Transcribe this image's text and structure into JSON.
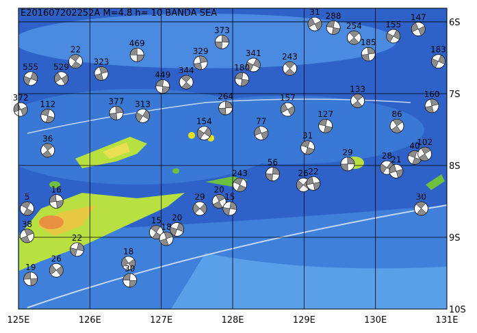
{
  "chart_data": {
    "type": "focal-map",
    "title": "E201607202252A  M=4.8  h= 10  BANDA SEA",
    "xlim": [
      125,
      131
    ],
    "ylim": [
      -10,
      -5.81
    ],
    "xticks": [
      {
        "value": 125,
        "label": "125E"
      },
      {
        "value": 126,
        "label": "126E"
      },
      {
        "value": 127,
        "label": "127E"
      },
      {
        "value": 128,
        "label": "128E"
      },
      {
        "value": 129,
        "label": "129E"
      },
      {
        "value": 130,
        "label": "130E"
      },
      {
        "value": 131,
        "label": "131E"
      }
    ],
    "yticks": [
      {
        "value": -6,
        "label": "6S"
      },
      {
        "value": -7,
        "label": "7S"
      },
      {
        "value": -8,
        "label": "8S"
      },
      {
        "value": -9,
        "label": "9S"
      },
      {
        "value": -10,
        "label": "10S"
      }
    ],
    "grid": true,
    "events": [
      {
        "lon": 126.66,
        "lat": -6.46,
        "depth": 469
      },
      {
        "lon": 125.8,
        "lat": -6.55,
        "depth": 22
      },
      {
        "lon": 126.16,
        "lat": -6.72,
        "depth": 323
      },
      {
        "lon": 125.17,
        "lat": -6.79,
        "depth": 555
      },
      {
        "lon": 125.6,
        "lat": -6.79,
        "depth": 529
      },
      {
        "lon": 127.02,
        "lat": -6.9,
        "depth": 449
      },
      {
        "lon": 127.35,
        "lat": -6.84,
        "depth": 344
      },
      {
        "lon": 127.55,
        "lat": -6.57,
        "depth": 329
      },
      {
        "lon": 128.29,
        "lat": -6.6,
        "depth": 341
      },
      {
        "lon": 129.15,
        "lat": -6.03,
        "depth": 31
      },
      {
        "lon": 129.41,
        "lat": -6.08,
        "depth": 288
      },
      {
        "lon": 129.7,
        "lat": -6.22,
        "depth": 254
      },
      {
        "lon": 126.37,
        "lat": -7.27,
        "depth": 377
      },
      {
        "lon": 126.74,
        "lat": -7.31,
        "depth": 313
      },
      {
        "lon": 125.03,
        "lat": -7.22,
        "depth": 372
      },
      {
        "lon": 125.41,
        "lat": -7.31,
        "depth": 112
      },
      {
        "lon": 125.41,
        "lat": -7.79,
        "depth": 36
      },
      {
        "lon": 129.61,
        "lat": -7.98,
        "depth": 29
      },
      {
        "lon": 130.16,
        "lat": -8.03,
        "depth": 28
      },
      {
        "lon": 130.29,
        "lat": -8.08,
        "depth": 21
      },
      {
        "lon": 130.55,
        "lat": -7.89,
        "depth": 40
      },
      {
        "lon": 130.69,
        "lat": -7.84,
        "depth": 102
      },
      {
        "lon": 128.56,
        "lat": -8.12,
        "depth": 56
      },
      {
        "lon": 128.99,
        "lat": -8.27,
        "depth": 26
      },
      {
        "lon": 129.13,
        "lat": -8.25,
        "depth": 22
      },
      {
        "lon": 128.1,
        "lat": -8.27,
        "depth": 243
      },
      {
        "lon": 127.81,
        "lat": -8.5,
        "depth": 20
      },
      {
        "lon": 127.96,
        "lat": -8.6,
        "depth": 15
      },
      {
        "lon": 127.54,
        "lat": -8.6,
        "depth": 29
      },
      {
        "lon": 125.53,
        "lat": -8.5,
        "depth": 16
      },
      {
        "lon": 125.12,
        "lat": -8.6,
        "depth": 5
      },
      {
        "lon": 125.12,
        "lat": -8.98,
        "depth": 38
      },
      {
        "lon": 125.82,
        "lat": -9.17,
        "depth": 22
      },
      {
        "lon": 125.53,
        "lat": -9.46,
        "depth": 26
      },
      {
        "lon": 125.17,
        "lat": -9.58,
        "depth": 19
      },
      {
        "lon": 126.93,
        "lat": -8.93,
        "depth": 15
      },
      {
        "lon": 127.07,
        "lat": -9.02,
        "depth": 18
      },
      {
        "lon": 127.22,
        "lat": -8.89,
        "depth": 20
      },
      {
        "lon": 126.54,
        "lat": -9.36,
        "depth": 18
      },
      {
        "lon": 126.56,
        "lat": -9.6,
        "depth": 30
      },
      {
        "lon": 130.64,
        "lat": -8.6,
        "depth": 30
      },
      {
        "lon": 130.79,
        "lat": -7.17,
        "depth": 160
      },
      {
        "lon": 130.88,
        "lat": -6.55,
        "depth": 183
      },
      {
        "lon": 128.77,
        "lat": -7.22,
        "depth": 157
      },
      {
        "lon": 128.13,
        "lat": -6.8,
        "depth": 180
      },
      {
        "lon": 128.8,
        "lat": -6.65,
        "depth": 243
      },
      {
        "lon": 129.9,
        "lat": -6.45,
        "depth": 185
      },
      {
        "lon": 130.25,
        "lat": -6.2,
        "depth": 155
      },
      {
        "lon": 130.6,
        "lat": -6.1,
        "depth": 147
      },
      {
        "lon": 129.3,
        "lat": -7.45,
        "depth": 127
      },
      {
        "lon": 129.75,
        "lat": -7.1,
        "depth": 133
      },
      {
        "lon": 127.9,
        "lat": -7.2,
        "depth": 264
      },
      {
        "lon": 127.6,
        "lat": -7.55,
        "depth": 154
      },
      {
        "lon": 128.4,
        "lat": -7.55,
        "depth": 77
      },
      {
        "lon": 129.05,
        "lat": -7.75,
        "depth": 31
      },
      {
        "lon": 130.3,
        "lat": -7.45,
        "depth": 86
      },
      {
        "lon": 127.85,
        "lat": -6.28,
        "depth": 373
      }
    ]
  }
}
